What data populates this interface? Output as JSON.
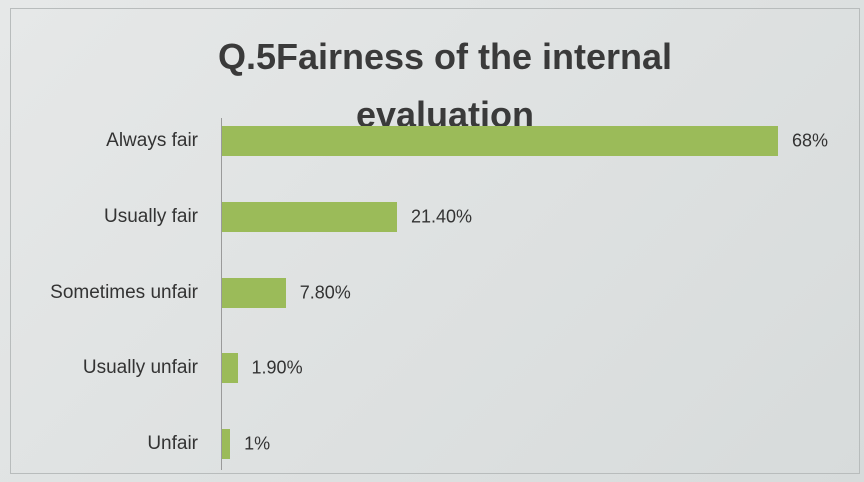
{
  "chart_data": {
    "type": "bar",
    "orientation": "horizontal",
    "title": "Q.5Fairness of the internal evaluation",
    "categories": [
      "Always fair",
      "Usually fair",
      "Sometimes unfair",
      "Usually unfair",
      "Unfair"
    ],
    "values": [
      68,
      21.4,
      7.8,
      1.9,
      1
    ],
    "value_labels": [
      "68%",
      "21.40%",
      "7.80%",
      "1.90%",
      "1%"
    ],
    "color": "#9bbb59"
  }
}
